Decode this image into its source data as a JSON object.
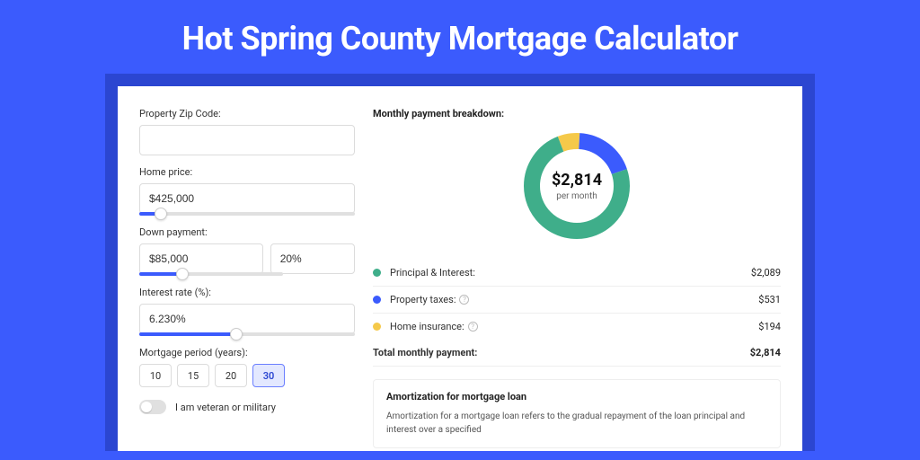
{
  "title": "Hot Spring County Mortgage Calculator",
  "colors": {
    "page_bg": "#3b5bfd",
    "panel_shadow": "#2b46d1",
    "panel_bg": "#ffffff",
    "accent": "#3b5bfd",
    "text": "#333333"
  },
  "form": {
    "zip": {
      "label": "Property Zip Code:",
      "value": ""
    },
    "home_price": {
      "label": "Home price:",
      "value": "$425,000",
      "slider_pct": 10
    },
    "down_payment": {
      "label": "Down payment:",
      "amount": "$85,000",
      "percent": "20%",
      "slider_pct": 30
    },
    "interest_rate": {
      "label": "Interest rate (%):",
      "value": "6.230%",
      "slider_pct": 45
    },
    "period": {
      "label": "Mortgage period (years):",
      "options": [
        "10",
        "15",
        "20",
        "30"
      ],
      "selected": "30"
    },
    "veteran": {
      "label": "I am veteran or military",
      "checked": false
    }
  },
  "breakdown": {
    "title": "Monthly payment breakdown:",
    "center_value": "$2,814",
    "center_sub": "per month",
    "donut": {
      "radius": 50,
      "stroke_width": 18,
      "bg_color": "#ffffff"
    },
    "items": [
      {
        "key": "principal_interest",
        "label": "Principal & Interest:",
        "value": "$2,089",
        "amount": 2089,
        "color": "#3fae8a",
        "info": false
      },
      {
        "key": "property_taxes",
        "label": "Property taxes:",
        "value": "$531",
        "amount": 531,
        "color": "#3b5bfd",
        "info": true
      },
      {
        "key": "home_insurance",
        "label": "Home insurance:",
        "value": "$194",
        "amount": 194,
        "color": "#f5c94a",
        "info": true
      }
    ],
    "total": {
      "label": "Total monthly payment:",
      "value": "$2,814"
    }
  },
  "amortization": {
    "title": "Amortization for mortgage loan",
    "body": "Amortization for a mortgage loan refers to the gradual repayment of the loan principal and interest over a specified"
  }
}
